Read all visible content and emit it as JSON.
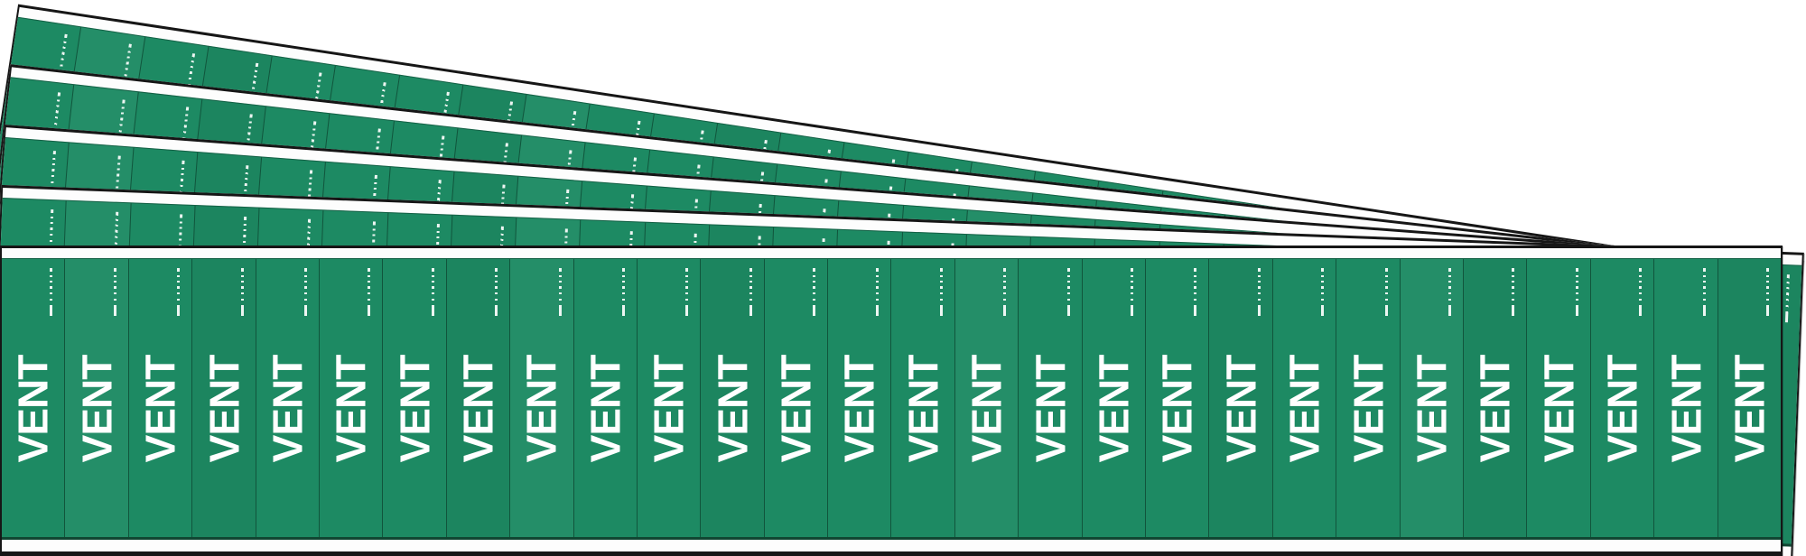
{
  "scene": {
    "description": "Five fanned sheets of green pipe-marker labels",
    "background_color": "#ffffff",
    "cards": [
      {
        "position": "back-1",
        "fan_angle_deg": 8.6
      },
      {
        "position": "back-2",
        "fan_angle_deg": 6.45
      },
      {
        "position": "back-3",
        "fan_angle_deg": 4.3
      },
      {
        "position": "back-4",
        "fan_angle_deg": 2.15
      },
      {
        "position": "front",
        "fan_angle_deg": 0
      }
    ]
  },
  "card": {
    "strip_label": "VENT",
    "strip_count": 28,
    "micro_print_tick": "micro-text-dash",
    "colors": {
      "marker_green": "#1d8a63",
      "label_text": "#ffffff",
      "sheet_white": "#fdfdfd",
      "outline_black": "#161616"
    }
  }
}
